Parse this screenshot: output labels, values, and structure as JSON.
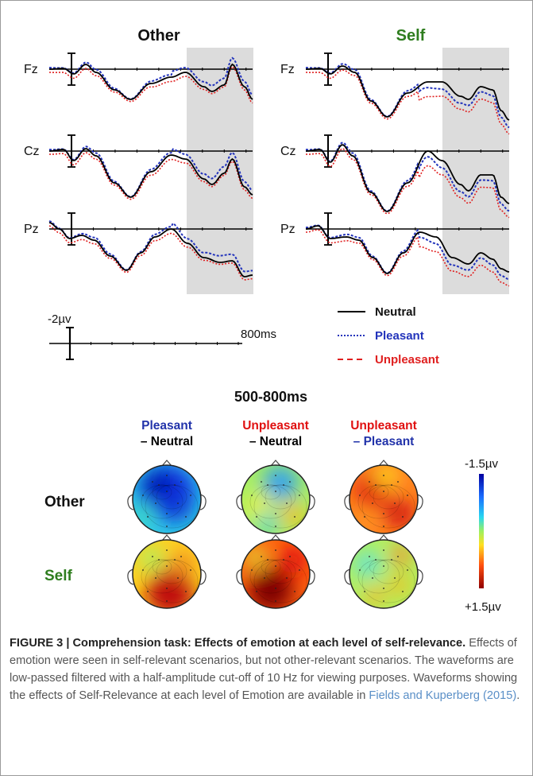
{
  "figure": {
    "panel_titles": {
      "other": "Other",
      "self": "Self"
    },
    "electrodes": [
      "Fz",
      "Cz",
      "Pz"
    ],
    "scale": {
      "amplitude": "-2µv",
      "time": "800ms"
    },
    "legend": [
      {
        "label": "Neutral",
        "color": "#000000",
        "style": "solid"
      },
      {
        "label": "Pleasant",
        "color": "#2233bb",
        "style": "dotted"
      },
      {
        "label": "Unpleasant",
        "color": "#e02020",
        "style": "dashed"
      }
    ],
    "window_label": "500-800ms",
    "contrasts": [
      {
        "top": "Pleasant",
        "bottom": "– Neutral",
        "top_color": "#2233aa",
        "bottom_color": "#000000"
      },
      {
        "top": "Unpleasant",
        "bottom": "– Neutral",
        "top_color": "#e01010",
        "bottom_color": "#000000"
      },
      {
        "top": "Unpleasant",
        "bottom": "– Pleasant",
        "top_color": "#e01010",
        "bottom_color": "#2233aa"
      }
    ],
    "row_labels": {
      "other": "Other",
      "self": "Self"
    },
    "colorbar": {
      "top": "-1.5µv",
      "bottom": "+1.5µv"
    },
    "colors": {
      "self_green": "#2e7d1e",
      "shade": "#dcdcdc"
    }
  },
  "caption": {
    "bold": "FIGURE 3 | Comprehension task: Effects of emotion at each level of self-relevance.",
    "text": " Effects of emotion were seen in self-relevant scenarios, but not other-relevant scenarios. The waveforms are low-passed filtered with a half-amplitude cut-off of 10 Hz for viewing purposes. Waveforms showing the effects of Self-Relevance at each level of Emotion are available in ",
    "link": "Fields and Kuperberg (2015)",
    "end": "."
  }
}
